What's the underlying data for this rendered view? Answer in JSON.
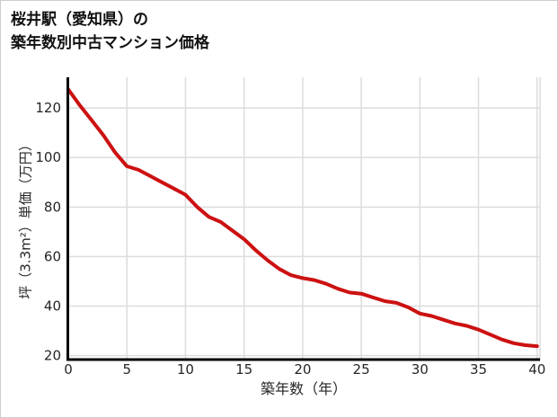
{
  "page": {
    "title_line1": "桜井駅（愛知県）の",
    "title_line2": "築年数別中古マンション価格"
  },
  "chart_data": {
    "type": "line",
    "title": "桜井駅（愛知県）の\n築年数別中古マンション価格",
    "xlabel": "築年数（年）",
    "ylabel": "坪（3.3m²）単価（万円）",
    "x": [
      0,
      1,
      2,
      3,
      4,
      5,
      6,
      7,
      8,
      9,
      10,
      11,
      12,
      13,
      14,
      15,
      16,
      17,
      18,
      19,
      20,
      21,
      22,
      23,
      24,
      25,
      26,
      27,
      28,
      29,
      30,
      31,
      32,
      33,
      34,
      35,
      36,
      37,
      38,
      39,
      40
    ],
    "y": [
      127.5,
      121,
      115,
      109,
      102,
      96.5,
      95,
      92.5,
      90,
      87.5,
      85,
      80,
      76,
      74,
      70.5,
      67,
      62.5,
      58.5,
      55,
      52.5,
      51.3,
      50.5,
      49,
      47,
      45.5,
      45,
      43.5,
      42,
      41.3,
      39.5,
      37,
      36,
      34.5,
      33,
      32,
      30.5,
      28.5,
      26.5,
      25,
      24.2,
      23.8
    ],
    "xticks": [
      0,
      5,
      10,
      15,
      20,
      25,
      30,
      35,
      40
    ],
    "yticks": [
      20,
      40,
      60,
      80,
      100,
      120
    ],
    "xlim": [
      0,
      40.25
    ],
    "ylim": [
      18.4,
      132.4
    ],
    "grid": true,
    "legend": "none",
    "colors": {
      "line": "#cc1111",
      "grid": "#dcdcdc",
      "axis": "#000000",
      "tick_text": "#262626",
      "title_text": "#111111",
      "background": "#ffffff"
    },
    "line_width": 4
  }
}
